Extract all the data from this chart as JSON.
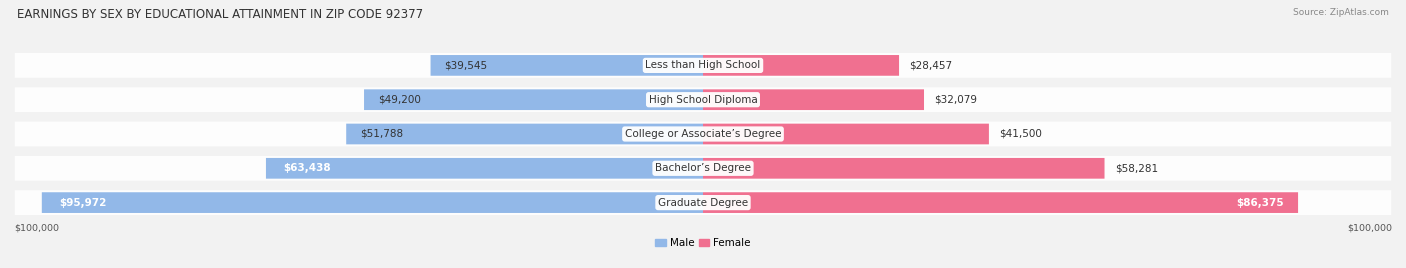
{
  "title": "EARNINGS BY SEX BY EDUCATIONAL ATTAINMENT IN ZIP CODE 92377",
  "source": "Source: ZipAtlas.com",
  "categories": [
    "Less than High School",
    "High School Diploma",
    "College or Associate’s Degree",
    "Bachelor’s Degree",
    "Graduate Degree"
  ],
  "male_values": [
    39545,
    49200,
    51788,
    63438,
    95972
  ],
  "female_values": [
    28457,
    32079,
    41500,
    58281,
    86375
  ],
  "male_labels": [
    "$39,545",
    "$49,200",
    "$51,788",
    "$63,438",
    "$95,972"
  ],
  "female_labels": [
    "$28,457",
    "$32,079",
    "$41,500",
    "$58,281",
    "$86,375"
  ],
  "male_color": "#92b8e8",
  "female_color": "#f07090",
  "axis_max": 100000,
  "x_label_left": "$100,000",
  "x_label_right": "$100,000",
  "background_color": "#f2f2f2",
  "title_fontsize": 8.5,
  "label_fontsize": 7.5,
  "source_fontsize": 6.5,
  "bar_height": 0.6
}
